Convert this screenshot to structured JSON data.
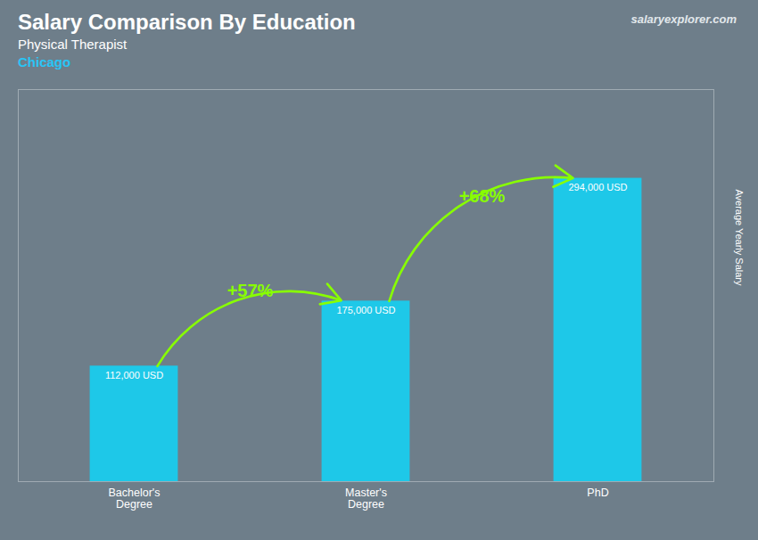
{
  "chart_data": {
    "type": "bar",
    "title": "Salary Comparison By Education",
    "subtitle": [
      "Physical Therapist",
      "Chicago"
    ],
    "watermark": "salaryexplorer.com",
    "ylabel": "Average Yearly Salary",
    "categories": [
      "Bachelor's\nDegree",
      "Master's\nDegree",
      "PhD"
    ],
    "values": [
      112000,
      175000,
      294000
    ],
    "value_labels": [
      "112,000 USD",
      "175,000 USD",
      "294,000 USD"
    ],
    "data_labels": true,
    "color": "#1EC8E8",
    "ylim": [
      0,
      380000
    ],
    "tick_labels": "x",
    "grid": false,
    "annotations": [
      {
        "text": "+57%",
        "from": "Bachelor's\nDegree",
        "to": "Master's\nDegree",
        "color": "#88FF00"
      },
      {
        "text": "+68%",
        "from": "Master's\nDegree",
        "to": "PhD",
        "color": "#88FF00"
      }
    ]
  }
}
